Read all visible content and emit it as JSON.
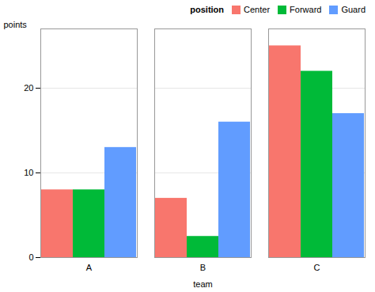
{
  "chart_data": {
    "type": "bar",
    "categories": [
      "A",
      "B",
      "C"
    ],
    "series": [
      {
        "name": "Center",
        "color": "#F8766D",
        "values": [
          8,
          7,
          25
        ]
      },
      {
        "name": "Forward",
        "color": "#00BA38",
        "values": [
          8,
          2.5,
          22
        ]
      },
      {
        "name": "Guard",
        "color": "#619CFF",
        "values": [
          13,
          16,
          17
        ]
      }
    ],
    "xlabel": "team",
    "ylabel": "points",
    "legend_title": "position",
    "ylim": [
      0,
      27
    ],
    "yticks": [
      0,
      10,
      20
    ],
    "grid": true,
    "legend": "upper right"
  }
}
